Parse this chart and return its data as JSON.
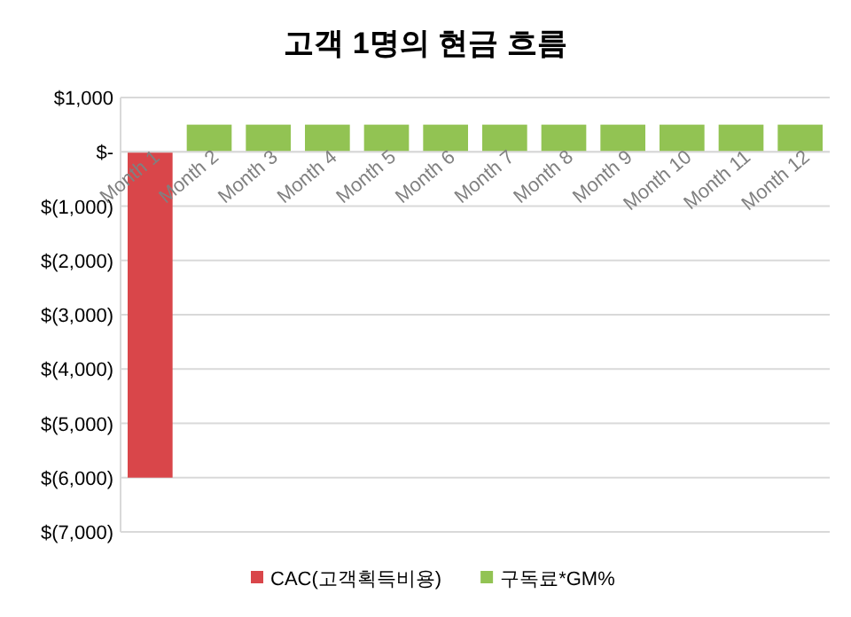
{
  "chart_data": {
    "type": "bar",
    "title": "고객 1명의 현금 흐름",
    "categories": [
      "Month 1",
      "Month 2",
      "Month 3",
      "Month 4",
      "Month 5",
      "Month 6",
      "Month 7",
      "Month 8",
      "Month 9",
      "Month 10",
      "Month 11",
      "Month 12"
    ],
    "series": [
      {
        "name": "CAC(고객획득비용)",
        "color": "#d9464a",
        "values": [
          -6000,
          null,
          null,
          null,
          null,
          null,
          null,
          null,
          null,
          null,
          null,
          null
        ]
      },
      {
        "name": "구독료*GM%",
        "color": "#92c353",
        "values": [
          null,
          500,
          500,
          500,
          500,
          500,
          500,
          500,
          500,
          500,
          500,
          500
        ]
      }
    ],
    "ylim": [
      -7000,
      1000
    ],
    "yticks": [
      {
        "value": 1000,
        "label": "$1,000"
      },
      {
        "value": 0,
        "label": "$-"
      },
      {
        "value": -1000,
        "label": "$(1,000)"
      },
      {
        "value": -2000,
        "label": "$(2,000)"
      },
      {
        "value": -3000,
        "label": "$(3,000)"
      },
      {
        "value": -4000,
        "label": "$(4,000)"
      },
      {
        "value": -5000,
        "label": "$(5,000)"
      },
      {
        "value": -6000,
        "label": "$(6,000)"
      },
      {
        "value": -7000,
        "label": "$(7,000)"
      }
    ],
    "grid": "y",
    "legend": "bottom"
  }
}
